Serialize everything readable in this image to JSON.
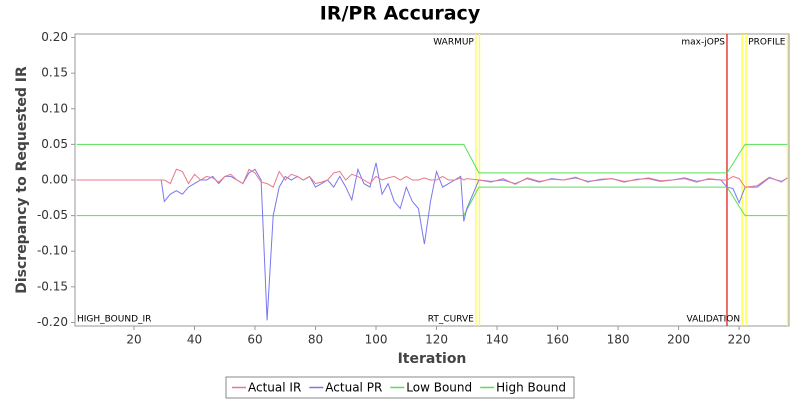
{
  "chart_data": {
    "type": "line",
    "title": "IR/PR Accuracy",
    "x_label": "Iteration",
    "y_label": "Discrepancy to Requested IR",
    "xlim": [
      0.5,
      236.5
    ],
    "ylim": [
      -0.205,
      0.205
    ],
    "xticks": [
      20,
      40,
      60,
      80,
      100,
      120,
      140,
      160,
      180,
      200,
      220
    ],
    "yticks": [
      {
        "value": 0.2,
        "label": "0.20"
      },
      {
        "value": 0.15,
        "label": "0.15"
      },
      {
        "value": 0.1,
        "label": "0.10"
      },
      {
        "value": 0.05,
        "label": "0.05"
      },
      {
        "value": 0,
        "label": "0.00"
      },
      {
        "value": -0.05,
        "label": "-0.05"
      },
      {
        "value": -0.1,
        "label": "-0.10"
      },
      {
        "value": -0.15,
        "label": "-0.15"
      },
      {
        "value": -0.2,
        "label": "-0.20"
      }
    ],
    "x": [
      1,
      29,
      30,
      32,
      34,
      36,
      38,
      40,
      42,
      44,
      46,
      48,
      50,
      52,
      54,
      56,
      58,
      60,
      62,
      64,
      66,
      68,
      70,
      72,
      74,
      76,
      78,
      80,
      82,
      84,
      86,
      88,
      90,
      92,
      94,
      96,
      98,
      100,
      102,
      104,
      106,
      108,
      110,
      112,
      114,
      116,
      118,
      120,
      122,
      124,
      126,
      128,
      129,
      130,
      134,
      138,
      142,
      146,
      150,
      154,
      158,
      162,
      166,
      170,
      174,
      178,
      182,
      186,
      190,
      194,
      198,
      202,
      206,
      210,
      214,
      216,
      218,
      220,
      222,
      226,
      230,
      234,
      236
    ],
    "series": [
      {
        "name": "Actual IR",
        "color": "#e87a8a",
        "values": [
          0,
          0,
          0.0,
          -0.005,
          0.015,
          0.012,
          -0.005,
          0.008,
          0.0,
          0.005,
          0.003,
          -0.003,
          0.005,
          0.008,
          0.0,
          -0.005,
          0.015,
          0.01,
          -0.003,
          -0.005,
          -0.01,
          0.012,
          0.0,
          0.008,
          0.005,
          0.0,
          0.005,
          -0.005,
          -0.003,
          0.0,
          0.01,
          0.012,
          0.0,
          0.008,
          0.005,
          0.0,
          -0.005,
          0.005,
          0.0,
          0.003,
          0.005,
          0.0,
          0.005,
          0.0,
          0.0,
          0.003,
          0.0,
          0.0,
          0.005,
          0.0,
          0.0,
          0.003,
          0.0,
          0.002,
          0.0,
          -0.003,
          0.002,
          -0.006,
          0.003,
          -0.002,
          0.001,
          0.0,
          0.004,
          -0.003,
          0.001,
          0.002,
          -0.002,
          0.0,
          0.003,
          -0.001,
          0.0,
          0.002,
          -0.003,
          0.002,
          0.0,
          0.0,
          0.005,
          0.002,
          -0.01,
          -0.008,
          0.004,
          -0.003,
          0.003
        ]
      },
      {
        "name": "Actual PR",
        "color": "#7878f0",
        "values": [
          0,
          0,
          -0.03,
          -0.02,
          -0.015,
          -0.02,
          -0.01,
          -0.005,
          0.0,
          0.0,
          0.005,
          -0.005,
          0.005,
          0.005,
          0.0,
          -0.005,
          0.01,
          0.015,
          0.0,
          -0.197,
          -0.05,
          -0.01,
          0.005,
          0.0,
          0.005,
          0.0,
          0.005,
          -0.01,
          -0.005,
          0.0,
          -0.01,
          0.005,
          -0.01,
          -0.028,
          0.015,
          -0.005,
          -0.01,
          0.024,
          -0.02,
          -0.005,
          -0.03,
          -0.04,
          -0.01,
          -0.03,
          -0.04,
          -0.09,
          -0.03,
          0.012,
          -0.01,
          -0.005,
          0.0,
          0.005,
          -0.058,
          -0.04,
          0.0,
          -0.002,
          0.0,
          -0.005,
          0.002,
          -0.003,
          0.002,
          0.0,
          0.003,
          -0.002,
          0.0,
          0.002,
          -0.003,
          0.001,
          0.002,
          -0.002,
          0.0,
          0.003,
          -0.002,
          0.001,
          0.0,
          -0.01,
          -0.012,
          -0.032,
          -0.01,
          -0.01,
          0.003,
          -0.002,
          0.003
        ]
      },
      {
        "name": "Low Bound",
        "color": "#55e055",
        "values": [
          -0.05,
          -0.05,
          -0.05,
          -0.05,
          -0.05,
          -0.05,
          -0.05,
          -0.05,
          -0.05,
          -0.05,
          -0.05,
          -0.05,
          -0.05,
          -0.05,
          -0.05,
          -0.05,
          -0.05,
          -0.05,
          -0.05,
          -0.05,
          -0.05,
          -0.05,
          -0.05,
          -0.05,
          -0.05,
          -0.05,
          -0.05,
          -0.05,
          -0.05,
          -0.05,
          -0.05,
          -0.05,
          -0.05,
          -0.05,
          -0.05,
          -0.05,
          -0.05,
          -0.05,
          -0.05,
          -0.05,
          -0.05,
          -0.05,
          -0.05,
          -0.05,
          -0.05,
          -0.05,
          -0.05,
          -0.05,
          -0.05,
          -0.05,
          -0.05,
          -0.05,
          -0.05,
          -0.042,
          -0.01,
          -0.01,
          -0.01,
          -0.01,
          -0.01,
          -0.01,
          -0.01,
          -0.01,
          -0.01,
          -0.01,
          -0.01,
          -0.01,
          -0.01,
          -0.01,
          -0.01,
          -0.01,
          -0.01,
          -0.01,
          -0.01,
          -0.01,
          -0.01,
          -0.01,
          -0.023,
          -0.037,
          -0.05,
          -0.05,
          -0.05,
          -0.05,
          -0.05
        ]
      },
      {
        "name": "High Bound",
        "color": "#55e055",
        "values": [
          0.05,
          0.05,
          0.05,
          0.05,
          0.05,
          0.05,
          0.05,
          0.05,
          0.05,
          0.05,
          0.05,
          0.05,
          0.05,
          0.05,
          0.05,
          0.05,
          0.05,
          0.05,
          0.05,
          0.05,
          0.05,
          0.05,
          0.05,
          0.05,
          0.05,
          0.05,
          0.05,
          0.05,
          0.05,
          0.05,
          0.05,
          0.05,
          0.05,
          0.05,
          0.05,
          0.05,
          0.05,
          0.05,
          0.05,
          0.05,
          0.05,
          0.05,
          0.05,
          0.05,
          0.05,
          0.05,
          0.05,
          0.05,
          0.05,
          0.05,
          0.05,
          0.05,
          0.05,
          0.042,
          0.01,
          0.01,
          0.01,
          0.01,
          0.01,
          0.01,
          0.01,
          0.01,
          0.01,
          0.01,
          0.01,
          0.01,
          0.01,
          0.01,
          0.01,
          0.01,
          0.01,
          0.01,
          0.01,
          0.01,
          0.01,
          0.01,
          0.023,
          0.037,
          0.05,
          0.05,
          0.05,
          0.05,
          0.05
        ]
      }
    ],
    "markers": [
      {
        "x": 1,
        "bottom": "HIGH_BOUND_IR"
      },
      {
        "x": 133,
        "color": "#ffff33",
        "top": "WARMUP",
        "bottom": "RT_CURVE"
      },
      {
        "x": 134.2,
        "color": "#ffff33"
      },
      {
        "x": 216,
        "color": "#e02020",
        "top": "max-jOPS"
      },
      {
        "x": 221,
        "color": "#ffff33",
        "bottom": "VALIDATION"
      },
      {
        "x": 222.3,
        "color": "#ffff33"
      },
      {
        "x": 236,
        "color": "#ffff33",
        "top": "PROFILE"
      }
    ]
  }
}
